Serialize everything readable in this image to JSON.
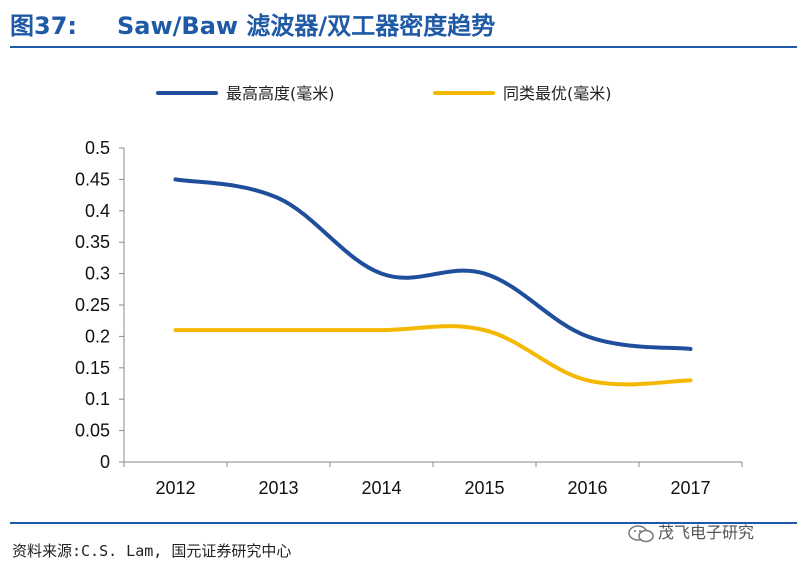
{
  "figure": {
    "number": "图37:",
    "title": "Saw/Baw 滤波器/双工器密度趋势"
  },
  "source": "资料来源:C.S. Lam, 国元证券研究中心",
  "watermark": "茂飞电子研究",
  "colors": {
    "accent": "#1f5aa6",
    "series1": "#1f4e9c",
    "series2": "#f5b800"
  },
  "chart_data": {
    "type": "line",
    "title": "",
    "xlabel": "",
    "ylabel": "",
    "categories": [
      "2012",
      "2013",
      "2014",
      "2015",
      "2016",
      "2017"
    ],
    "series": [
      {
        "name": "最高高度(毫米)",
        "values": [
          0.45,
          0.42,
          0.3,
          0.3,
          0.2,
          0.18
        ]
      },
      {
        "name": "同类最优(毫米)",
        "values": [
          0.21,
          0.21,
          0.21,
          0.21,
          0.13,
          0.13
        ]
      }
    ],
    "yticks": [
      "0",
      "0.05",
      "0.1",
      "0.15",
      "0.2",
      "0.25",
      "0.3",
      "0.35",
      "0.4",
      "0.45",
      "0.5"
    ],
    "ylim": [
      0,
      0.5
    ],
    "legend": "top",
    "grid": false
  }
}
